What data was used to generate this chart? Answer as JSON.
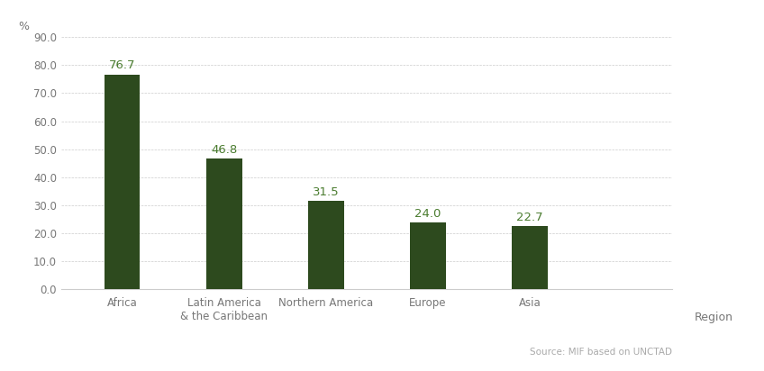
{
  "categories": [
    "Africa",
    "Latin America\n& the Caribbean",
    "Northern America",
    "Europe",
    "Asia"
  ],
  "values": [
    76.7,
    46.8,
    31.5,
    24.0,
    22.7
  ],
  "bar_color": "#2d4a1e",
  "label_color": "#4a7c2f",
  "ylabel": "%",
  "xlabel": "Region",
  "ylim": [
    0,
    90
  ],
  "yticks": [
    0.0,
    10.0,
    20.0,
    30.0,
    40.0,
    50.0,
    60.0,
    70.0,
    80.0,
    90.0
  ],
  "source_text": "Source: MIF based on UNCTAD",
  "background_color": "#ffffff",
  "grid_color": "#cccccc",
  "bar_width": 0.35,
  "label_fontsize": 9.5,
  "tick_fontsize": 8.5,
  "axis_label_fontsize": 9
}
